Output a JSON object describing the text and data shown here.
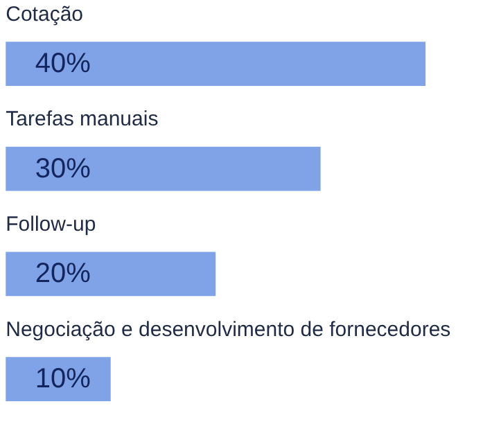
{
  "chart_data": {
    "type": "bar",
    "orientation": "horizontal",
    "categories": [
      "Cotação",
      "Tarefas manuais",
      "Follow-up",
      "Negociação e desenvolvimento de fornecedores"
    ],
    "values": [
      40,
      30,
      20,
      10
    ],
    "value_labels": [
      "40%",
      "30%",
      "20%",
      "10%"
    ],
    "color": "#7fa3e6",
    "grid": false
  }
}
